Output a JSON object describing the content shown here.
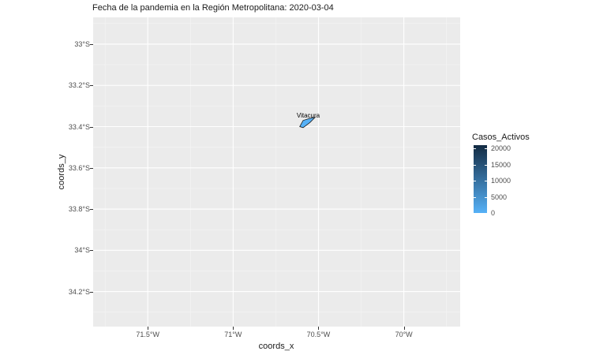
{
  "title": "Fecha de la pandemia en la Región Metropolitana: 2020-03-04",
  "map": {
    "xlabel": "coords_x",
    "ylabel": "coords_y",
    "xlim": [
      -71.82,
      -69.67
    ],
    "ylim": [
      -34.37,
      -32.87
    ],
    "x_ticks": [
      {
        "value": -71.5,
        "label": "71.5°W"
      },
      {
        "value": -71.0,
        "label": "71°W"
      },
      {
        "value": -70.5,
        "label": "70.5°W"
      },
      {
        "value": -70.0,
        "label": "70°W"
      }
    ],
    "y_ticks": [
      {
        "value": -33.0,
        "label": "33°S"
      },
      {
        "value": -33.2,
        "label": "33.2°S"
      },
      {
        "value": -33.4,
        "label": "33.4°S"
      },
      {
        "value": -33.6,
        "label": "33.6°S"
      },
      {
        "value": -33.8,
        "label": "33.8°S"
      },
      {
        "value": -34.0,
        "label": "34°S"
      },
      {
        "value": -34.2,
        "label": "34.2°S"
      }
    ],
    "regions": [
      {
        "name": "Vitacura",
        "label_lon": -70.56,
        "label_lat": -33.36,
        "polygon": [
          [
            -70.61,
            -33.4
          ],
          [
            -70.59,
            -33.37
          ],
          [
            -70.55,
            -33.36
          ],
          [
            -70.52,
            -33.355
          ],
          [
            -70.55,
            -33.38
          ],
          [
            -70.59,
            -33.405
          ]
        ]
      }
    ]
  },
  "legend": {
    "title": "Casos_Activos",
    "low_color": "#56b1f7",
    "high_color": "#132b43",
    "min": 0,
    "max": 21000,
    "ticks": [
      "0",
      "5000",
      "10000",
      "15000",
      "20000"
    ],
    "tick_values": [
      0,
      5000,
      10000,
      15000,
      20000
    ]
  },
  "colors": {
    "panel": "#ebebeb",
    "grid_major": "#ffffff",
    "region_fill": "#56b1f7"
  }
}
